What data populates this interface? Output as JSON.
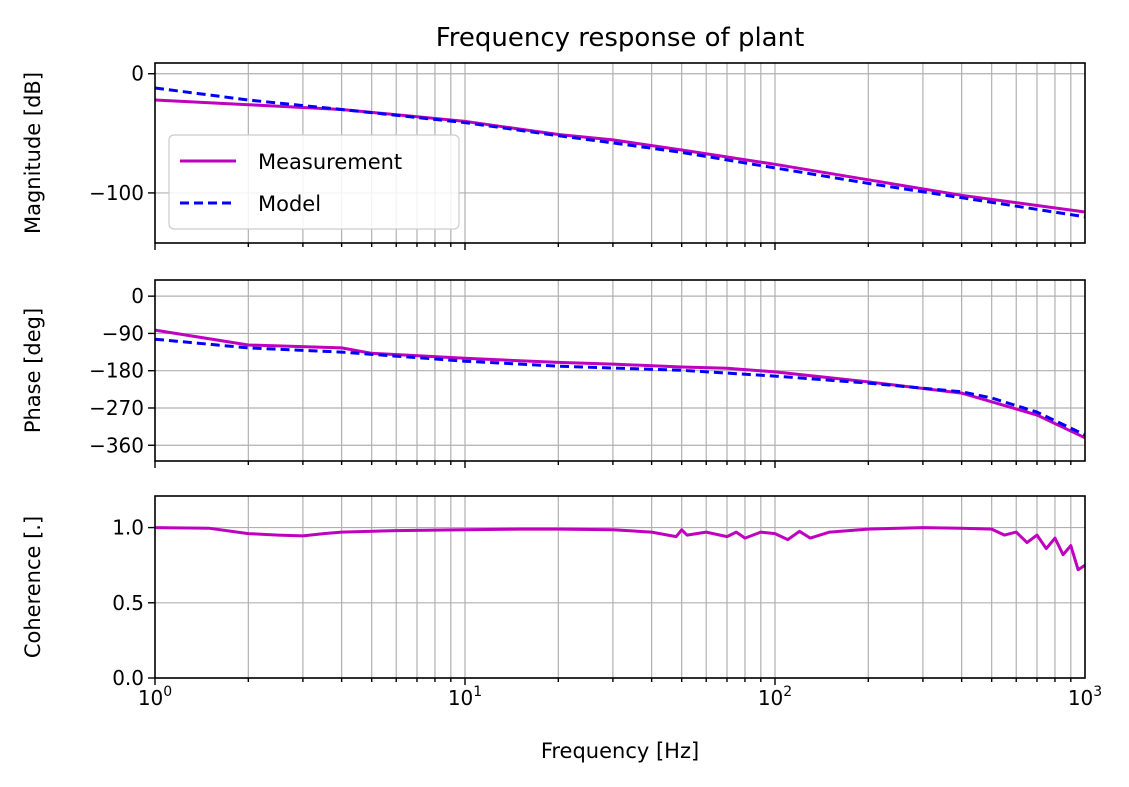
{
  "chart_data": {
    "type": "line",
    "title": "Frequency response of plant",
    "xlabel": "Frequency [Hz]",
    "xscale": "log",
    "xlim": [
      1,
      1000
    ],
    "xticks": [
      {
        "v": 1,
        "base": "10",
        "exp": "0"
      },
      {
        "v": 10,
        "base": "10",
        "exp": "1"
      },
      {
        "v": 100,
        "base": "10",
        "exp": "2"
      },
      {
        "v": 1000,
        "base": "10",
        "exp": "3"
      }
    ],
    "grid": true,
    "colors": {
      "Measurement": "#bf00bf",
      "Model": "#0000ff"
    },
    "subplots": [
      {
        "name": "magnitude",
        "ylabel": "Magnitude [dB]",
        "ylim": [
          -142,
          9
        ],
        "yticks": [
          {
            "v": 0,
            "label": "0"
          },
          {
            "v": -100,
            "label": "−100"
          }
        ],
        "legend": {
          "placement": "lower-left",
          "entries": [
            "Measurement",
            "Model"
          ]
        },
        "series": [
          {
            "name": "Measurement",
            "style": "solid",
            "x": [
              1,
              2,
              4,
              10,
              20,
              30,
              50,
              100,
              200,
              400,
              1000
            ],
            "y": [
              -22,
              -26,
              -30,
              -40,
              -51,
              -55.5,
              -64,
              -76,
              -89,
              -102,
              -116
            ]
          },
          {
            "name": "Model",
            "style": "dashed",
            "x": [
              1,
              2,
              4,
              10,
              20,
              30,
              50,
              100,
              200,
              400,
              1000
            ],
            "y": [
              -12,
              -22,
              -30,
              -41,
              -52,
              -58,
              -66,
              -79,
              -92,
              -104,
              -120
            ]
          }
        ]
      },
      {
        "name": "phase",
        "ylabel": "Phase [deg]",
        "ylim": [
          -398,
          39
        ],
        "yticks": [
          {
            "v": 0,
            "label": "0"
          },
          {
            "v": -90,
            "label": "−90"
          },
          {
            "v": -180,
            "label": "−180"
          },
          {
            "v": -270,
            "label": "−270"
          },
          {
            "v": -360,
            "label": "−360"
          }
        ],
        "series": [
          {
            "name": "Measurement",
            "style": "solid",
            "x": [
              1,
              2,
              4,
              5,
              10,
              20,
              30,
              50,
              70,
              100,
              200,
              400,
              500,
              700,
              1000
            ],
            "y": [
              -82,
              -118,
              -125,
              -138,
              -150,
              -160,
              -164,
              -171,
              -174,
              -183,
              -207,
              -234,
              -255,
              -287,
              -342
            ]
          },
          {
            "name": "Model",
            "style": "dashed",
            "x": [
              1,
              2,
              4,
              10,
              20,
              50,
              100,
              200,
              400,
              500,
              700,
              1000
            ],
            "y": [
              -104,
              -125,
              -135,
              -157,
              -169,
              -179,
              -193,
              -210,
              -231,
              -246,
              -280,
              -335
            ]
          }
        ]
      },
      {
        "name": "coherence",
        "ylabel": "Coherence [.]",
        "ylim": [
          0,
          1.21
        ],
        "yticks": [
          {
            "v": 0,
            "label": "0.0"
          },
          {
            "v": 0.5,
            "label": "0.5"
          },
          {
            "v": 1,
            "label": "1.0"
          }
        ],
        "series": [
          {
            "name": "Measurement",
            "style": "solid",
            "x": [
              1,
              1.5,
              2,
              2.5,
              3,
              3.5,
              4,
              6,
              10,
              15,
              20,
              30,
              40,
              48,
              50,
              52,
              60,
              70,
              75,
              80,
              90,
              100,
              110,
              120,
              130,
              150,
              200,
              300,
              400,
              500,
              550,
              600,
              650,
              700,
              750,
              800,
              850,
              900,
              950,
              1000
            ],
            "y": [
              1.0,
              0.995,
              0.96,
              0.95,
              0.945,
              0.96,
              0.97,
              0.98,
              0.985,
              0.99,
              0.99,
              0.985,
              0.97,
              0.94,
              0.985,
              0.95,
              0.97,
              0.94,
              0.97,
              0.93,
              0.97,
              0.96,
              0.92,
              0.975,
              0.93,
              0.97,
              0.99,
              1.0,
              0.995,
              0.99,
              0.95,
              0.97,
              0.9,
              0.95,
              0.86,
              0.93,
              0.82,
              0.88,
              0.72,
              0.75
            ]
          }
        ]
      }
    ]
  }
}
